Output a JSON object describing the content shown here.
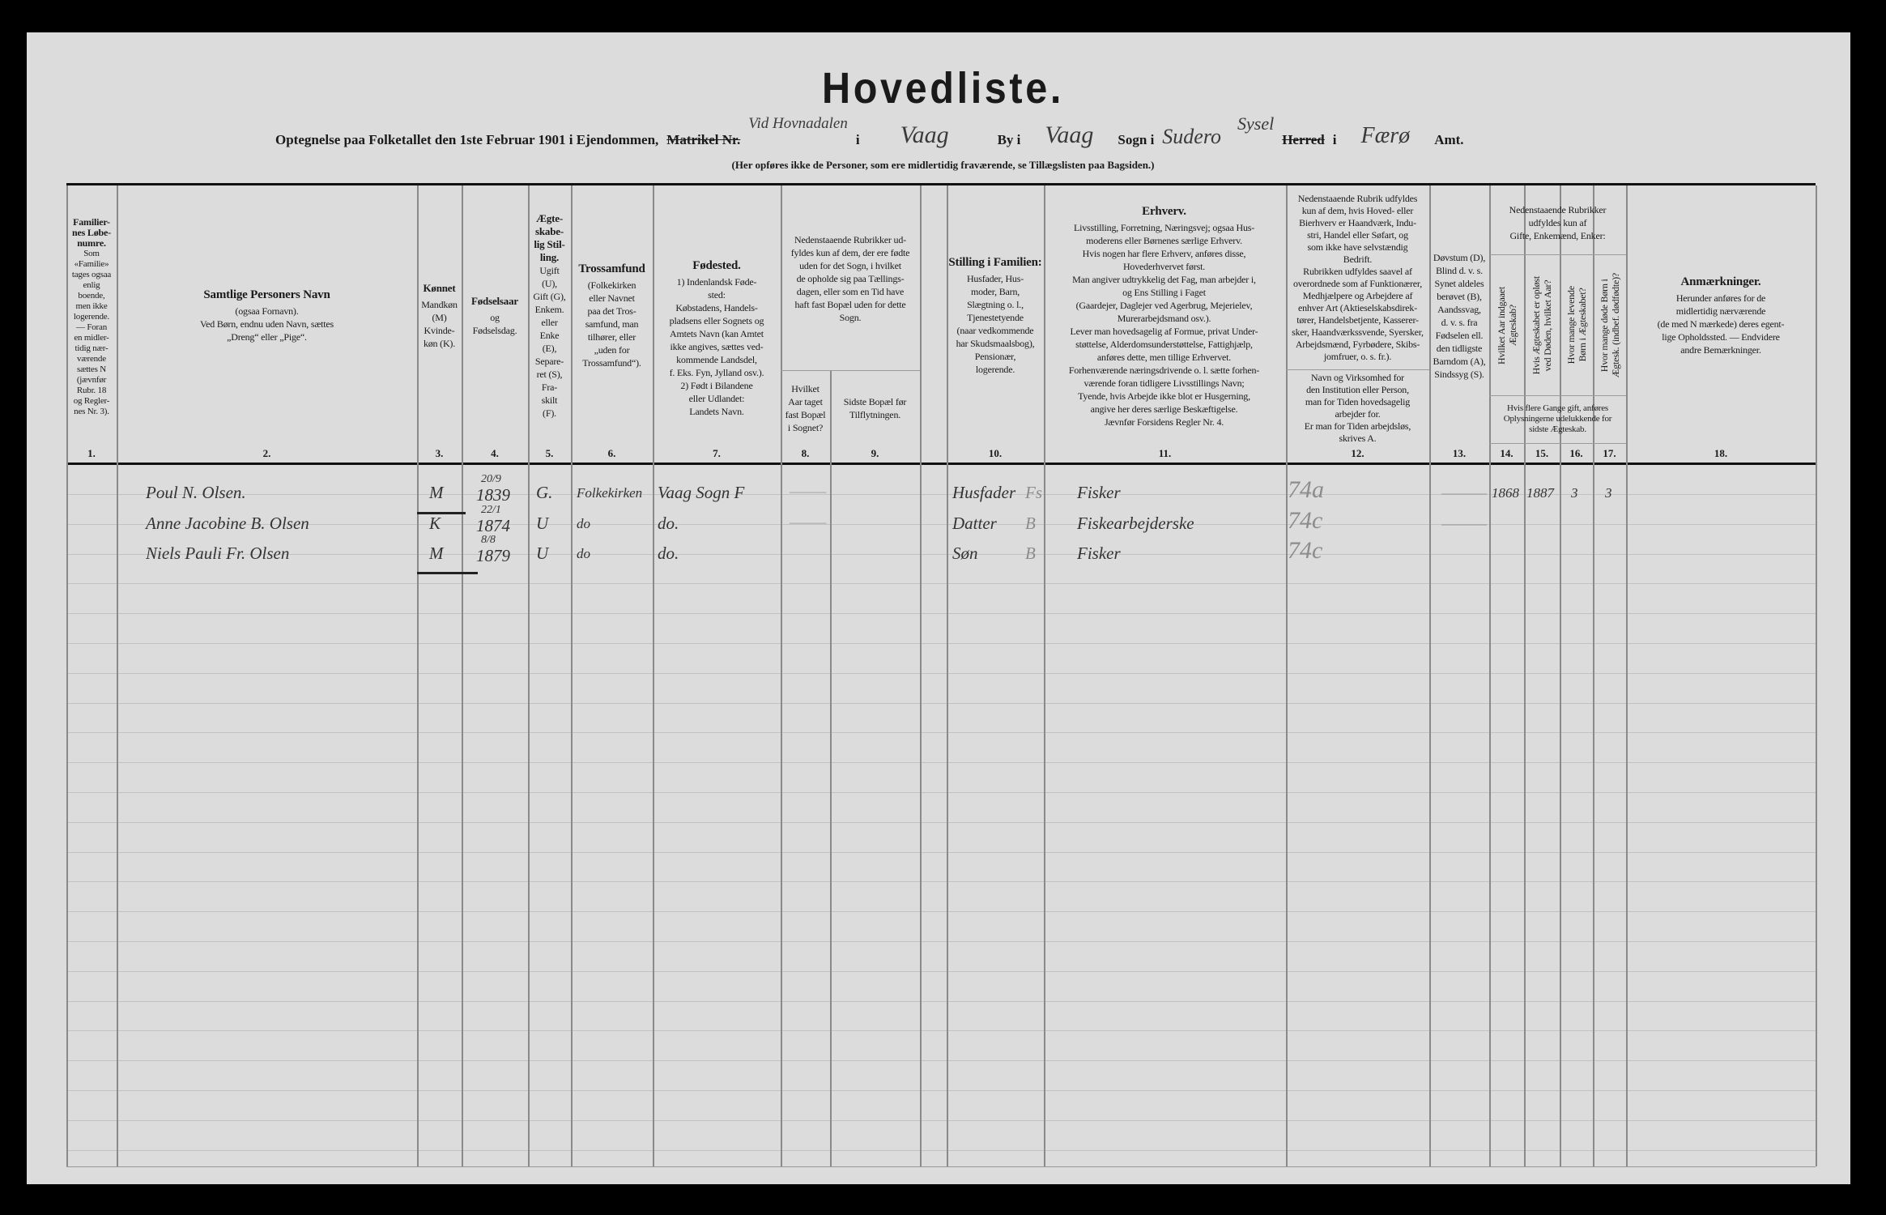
{
  "form": {
    "title": "Hovedliste.",
    "line_parts": [
      "Optegnelse paa Folketallet den 1ste Februar 1901 i Ejendommen,",
      "Matrikel Nr.",
      "i",
      "By i",
      "Sogn i",
      "Herred",
      "i",
      "Amt."
    ],
    "handwritten": {
      "property": "Vid Hovnadalen",
      "town": "Vaag",
      "parish": "Vaag",
      "parish2": "Sudero",
      "district": "Sysel",
      "county": "Færø"
    },
    "note": "(Her opføres ikke de Personer, som ere midlertidig fraværende, se Tillægslisten paa Bagsiden.)"
  },
  "columns": [
    {
      "num": "1.",
      "title": [
        "Familier-",
        "nes Løbe-",
        "numre."
      ],
      "lines": [
        "Som",
        "«Familie»",
        "tages ogsaa",
        "enlig",
        "boende,",
        "men ikke",
        "logerende.",
        "— Foran",
        "en midler-",
        "tidig nær-",
        "værende",
        "sættes N",
        "(jævnfør",
        "Rubr. 18",
        "og Regler-",
        "nes Nr. 3)."
      ]
    },
    {
      "num": "2.",
      "title": [
        "Samtlige Personers Navn"
      ],
      "lines": [
        "(ogsaa Fornavn).",
        "Ved Børn, endnu uden Navn, sættes",
        "„Dreng“ eller „Pige“."
      ]
    },
    {
      "num": "3.",
      "title": [
        "Kønnet"
      ],
      "lines": [
        "Mandkøn",
        "(M)",
        "Kvinde-",
        "køn (K)."
      ]
    },
    {
      "num": "4.",
      "title": [
        "Fødselsaar"
      ],
      "lines": [
        "og",
        "Fødselsdag."
      ]
    },
    {
      "num": "5.",
      "title": [
        "Ægte-",
        "skabe-",
        "lig Stil-",
        "ling."
      ],
      "lines": [
        "Ugift",
        "(U),",
        "Gift (G),",
        "Enkem.",
        "eller",
        "Enke",
        "(E),",
        "Separe-",
        "ret (S),",
        "Fra-",
        "skilt",
        "(F)."
      ]
    },
    {
      "num": "6.",
      "title": [
        "Trossamfund"
      ],
      "lines": [
        "(Folkekirken",
        "eller Navnet",
        "paa det Tros-",
        "samfund, man",
        "tilhører, eller",
        "„uden for",
        "Trossamfund“)."
      ]
    },
    {
      "num": "7.",
      "title": [
        "Fødested."
      ],
      "lines": [
        "1) Indenlandsk Føde-",
        "sted:",
        "Købstadens, Handels-",
        "pladsens eller Sognets og",
        "Amtets Navn (kan Amtet",
        "ikke angives, sættes ved-",
        "kommende Landsdel,",
        "f. Eks. Fyn, Jylland osv.).",
        "2) Født i Bilandene",
        "eller Udlandet:",
        "Landets Navn."
      ]
    },
    {
      "num": "",
      "title": [],
      "lines": [
        "Nedenstaaende Rubrikker ud-",
        "fyldes kun af dem, der ere fødte",
        "uden for det Sogn, i hvilket",
        "de opholde sig paa Tællings-",
        "dagen, eller som en Tid have",
        "haft fast Bopæl uden for dette",
        "Sogn."
      ]
    },
    {
      "num": "8.",
      "title": [],
      "lines": [
        "Hvilket",
        "Aar taget",
        "fast Bopæl",
        "i Sognet?"
      ]
    },
    {
      "num": "9.",
      "title": [],
      "lines": [
        "Sidste Bopæl før",
        "Tilflytningen."
      ]
    },
    {
      "num": "10.",
      "title": [
        "Stilling i Familien:"
      ],
      "lines": [
        "Husfader, Hus-",
        "moder, Barn,",
        "Slægtning o. l.,",
        "Tjenestetyende",
        "(naar vedkommende",
        "har Skudsmaalsbog),",
        "Pensionær,",
        "logerende."
      ]
    },
    {
      "num": "11.",
      "title": [
        "Erhverv."
      ],
      "lines": [
        "Livsstilling, Forretning, Næringsvej; ogsaa Hus-",
        "moderens eller Børnenes særlige Erhverv.",
        "Hvis nogen har flere Erhverv, anføres disse,",
        "Hovederhvervet først.",
        "Man angiver udtrykkelig det Fag, man arbejder i,",
        "og Ens Stilling i Faget",
        "(Gaardejer, Daglejer ved Agerbrug, Mejerielev,",
        "Murerarbejdsmand osv.).",
        "Lever man hovedsagelig af Formue, privat Under-",
        "støttelse, Alderdomsunderstøttelse, Fattighjælp,",
        "anføres dette, men tillige Erhvervet.",
        "Forhenværende næringsdrivende o. l. sætte forhen-",
        "værende foran tidligere Livsstillings Navn;",
        "Tyende, hvis Arbejde ikke blot er Husgerning,",
        "angive her deres særlige Beskæftigelse.",
        "Jævnfør Forsidens Regler Nr. 4."
      ]
    },
    {
      "num": "",
      "title": [],
      "lines": [
        "Nedenstaaende Rubrik udfyldes",
        "kun af dem, hvis Hoved- eller",
        "Bierhverv er Haandværk, Indu-",
        "stri, Handel eller Søfart, og",
        "som ikke have selvstændig",
        "Bedrift.",
        "Rubrikken udfyldes saavel af",
        "overordnede som af Funktionærer,",
        "Medhjælpere og Arbejdere af",
        "enhver Art (Aktieselskabsdirek-",
        "tører, Handelsbetjente, Kasserer-",
        "sker, Haandværkssvende, Syersker,",
        "Arbejdsmænd, Fyrbødere, Skibs-",
        "jomfruer, o. s. fr.)."
      ]
    },
    {
      "num": "12.",
      "title": [],
      "lines": [
        "Navn og Virksomhed for",
        "den Institution eller Person,",
        "man for Tiden hovedsagelig",
        "arbejder for.",
        "Er man for Tiden arbejdsløs,",
        "skrives A."
      ]
    },
    {
      "num": "13.",
      "title": [],
      "lines": [
        "Døvstum (D),",
        "Blind d. v. s.",
        "Synet aldeles",
        "berøvet (B),",
        "Aandssvag,",
        "d. v. s. fra",
        "Fødselen ell.",
        "den tidligste",
        "Barndom (A),",
        "Sindssyg (S)."
      ]
    },
    {
      "num": "",
      "title": [],
      "lines": [
        "Nedenstaaende Rubrikker",
        "udfyldes kun af",
        "Gifte, Enkemænd, Enker:"
      ]
    },
    {
      "num": "14.",
      "title": [],
      "lines": [
        "Hvilket Aar indgaaet",
        "Ægteskab?"
      ]
    },
    {
      "num": "15.",
      "title": [],
      "lines": [
        "Hvis Ægteskabet er opløst",
        "ved Døden, hvilket Aar?"
      ]
    },
    {
      "num": "16.",
      "title": [],
      "lines": [
        "Hvor mange levende",
        "Børn i Ægteskabet?"
      ]
    },
    {
      "num": "17.",
      "title": [],
      "lines": [
        "Hvor mange døde Børn i",
        "Ægtesk. (indbef. dødfødte)?"
      ]
    },
    {
      "num": "",
      "title": [],
      "lines": [
        "Hvis flere Gange gift, anføres",
        "Oplysningerne udelukkende for",
        "sidste Ægteskab."
      ]
    },
    {
      "num": "18.",
      "title": [
        "Anmærkninger."
      ],
      "lines": [
        "Herunder anføres for de",
        "midlertidig nærværende",
        "(de med N mærkede) deres egent-",
        "lige Opholdssted. — Endvidere",
        "andre Bemærkninger."
      ]
    }
  ],
  "entries": [
    {
      "name": "Poul N. Olsen.",
      "sex": "M",
      "birth_day": "20/9",
      "birth_year": "1839",
      "marital": "G.",
      "faith": "Folkekirken",
      "birthplace": "Vaag Sogn F",
      "year_settled": "—",
      "prev_residence": "",
      "family_role": "Husfader",
      "mark": "Fs",
      "occupation": "Fisker",
      "employer": "74a",
      "col13": "—",
      "married_year": "1868",
      "dissolved_year": "1887",
      "living_children": "3",
      "dead_children": "3"
    },
    {
      "name": "Anne Jacobine B. Olsen",
      "sex": "K",
      "birth_day": "22/1",
      "birth_year": "1874",
      "marital": "U",
      "faith": "do",
      "birthplace": "do.",
      "year_settled": "—",
      "prev_residence": "",
      "family_role": "Datter",
      "mark": "B",
      "occupation": "Fiskearbejderske",
      "employer": "74c",
      "col13": "—",
      "married_year": "",
      "dissolved_year": "",
      "living_children": "",
      "dead_children": ""
    },
    {
      "name": "Niels Pauli Fr. Olsen",
      "sex": "M",
      "birth_day": "8/8",
      "birth_year": "1879",
      "marital": "U",
      "faith": "do",
      "birthplace": "do.",
      "year_settled": "",
      "prev_residence": "",
      "family_role": "Søn",
      "mark": "B",
      "occupation": "Fisker",
      "employer": "74c",
      "col13": "",
      "married_year": "",
      "dissolved_year": "",
      "living_children": "",
      "dead_children": ""
    }
  ],
  "colors": {
    "paper": "#dcdcdc",
    "background": "#000000",
    "ink": "#1a1a1a"
  }
}
